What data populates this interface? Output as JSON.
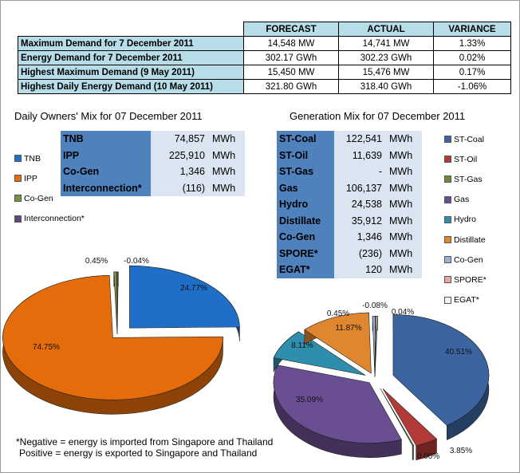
{
  "summary": {
    "headers": [
      "FORECAST",
      "ACTUAL",
      "VARIANCE"
    ],
    "rows": [
      {
        "label": "Maximum Demand for 7 December 2011",
        "forecast": "14,548  MW",
        "actual": "14,741  MW",
        "variance": "1.33%"
      },
      {
        "label": "Energy Demand for 7 December 2011",
        "forecast": "302.17  GWh",
        "actual": "302.23  GWh",
        "variance": "0.02%"
      },
      {
        "label": "Highest Maximum Demand (9 May 2011)",
        "forecast": "15,450  MW",
        "actual": "15,476  MW",
        "variance": "0.17%"
      },
      {
        "label": "Highest Daily Energy Demand (10 May 2011)",
        "forecast": "321.80  GWh",
        "actual": "318.40  GWh",
        "variance": "-1.06%"
      }
    ]
  },
  "owners": {
    "title": "Daily Owners' Mix for 07 December 2011",
    "rows": [
      {
        "name": "TNB",
        "value": "74,857",
        "unit": "MWh"
      },
      {
        "name": "IPP",
        "value": "225,910",
        "unit": "MWh"
      },
      {
        "name": "Co-Gen",
        "value": "1,346",
        "unit": "MWh"
      },
      {
        "name": "Interconnection*",
        "value": "(116)",
        "unit": "MWh"
      }
    ]
  },
  "generation": {
    "title": "Generation Mix for 07 December 2011",
    "rows": [
      {
        "name": "ST-Coal",
        "value": "122,541",
        "unit": "MWh"
      },
      {
        "name": "ST-Oil",
        "value": "11,639",
        "unit": "MWh"
      },
      {
        "name": "ST-Gas",
        "value": "-",
        "unit": "MWh"
      },
      {
        "name": "Gas",
        "value": "106,137",
        "unit": "MWh"
      },
      {
        "name": "Hydro",
        "value": "24,538",
        "unit": "MWh"
      },
      {
        "name": "Distillate",
        "value": "35,912",
        "unit": "MWh"
      },
      {
        "name": "Co-Gen",
        "value": "1,346",
        "unit": "MWh"
      },
      {
        "name": "SPORE*",
        "value": "(236)",
        "unit": "MWh"
      },
      {
        "name": "EGAT*",
        "value": "120",
        "unit": "MWh"
      }
    ]
  },
  "note": {
    "line1": "*Negative = energy is imported from Singapore and Thailand",
    "line2": "Positive = energy is exported to Singapore and Thailand"
  },
  "chart_data": [
    {
      "type": "pie",
      "title": "Daily Owners' Mix for 07 December 2011",
      "legend_position": "left",
      "categories": [
        "TNB",
        "IPP",
        "Co-Gen",
        "Interconnection*"
      ],
      "values": [
        24.77,
        74.75,
        0.45,
        -0.04
      ],
      "labels": [
        "24.77%",
        "74.75%",
        "0.45%",
        "-0.04%"
      ],
      "colors": [
        "#1f6fc8",
        "#e46c0a",
        "#76923c",
        "#5f497a"
      ]
    },
    {
      "type": "pie",
      "title": "Generation Mix for 07 December 2011",
      "legend_position": "right",
      "categories": [
        "ST-Coal",
        "ST-Oil",
        "ST-Gas",
        "Gas",
        "Hydro",
        "Distillate",
        "Co-Gen",
        "SPORE*",
        "EGAT*"
      ],
      "values": [
        40.51,
        3.85,
        0.0,
        35.09,
        8.11,
        11.87,
        0.45,
        -0.08,
        0.04
      ],
      "labels": [
        "40.51%",
        "3.85%",
        "0.00%",
        "35.09%",
        "8.11%",
        "11.87%",
        "0.45%",
        "-0.08%",
        "0.04%"
      ],
      "colors": [
        "#3b64a0",
        "#b33a36",
        "#6f8a35",
        "#6a4e92",
        "#2f8eac",
        "#e0862e",
        "#95b3d7",
        "#e6a8a0",
        "#f2f2f2"
      ]
    }
  ]
}
